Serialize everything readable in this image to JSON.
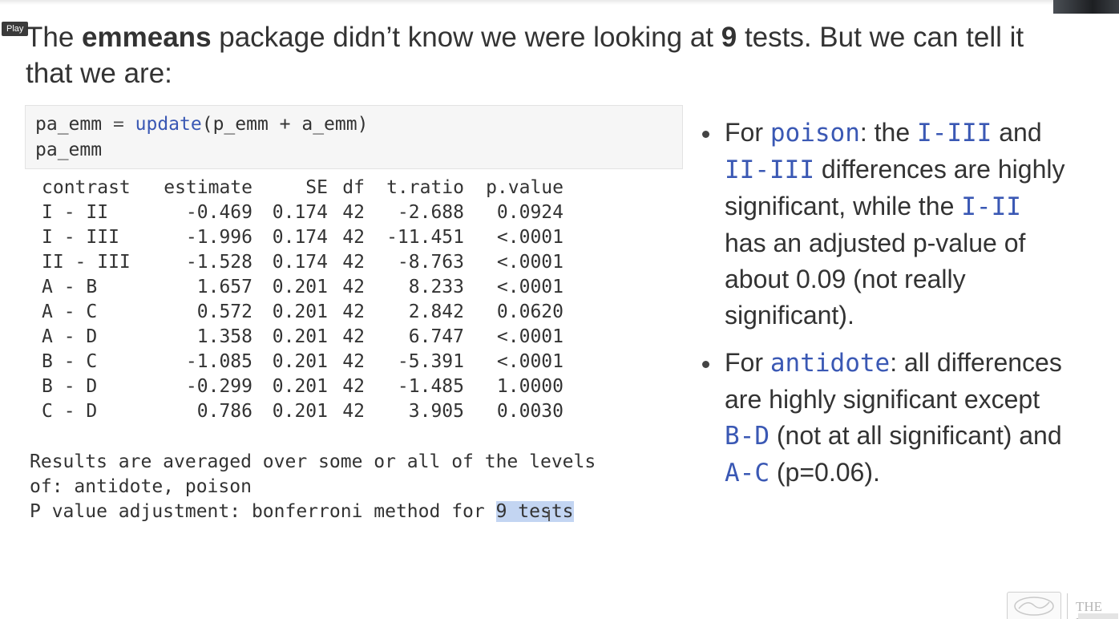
{
  "player": {
    "play_label": "Play"
  },
  "heading": {
    "part1": "The ",
    "bold1": "emmeans",
    "part2": " package didn’t know we were looking at ",
    "bold2": "9",
    "part3": " tests. But we can tell it that we are:"
  },
  "code": {
    "line1": {
      "var": "pa_emm",
      "assign": " = ",
      "fn": "update",
      "args": "(p_emm + a_emm)"
    },
    "line2": "pa_emm"
  },
  "output_table": {
    "headers": [
      "contrast",
      "estimate",
      "SE",
      "df",
      "t.ratio",
      "p.value"
    ],
    "rows": [
      [
        "I - II",
        "-0.469",
        "0.174",
        "42",
        "-2.688",
        "0.0924"
      ],
      [
        "I - III",
        "-1.996",
        "0.174",
        "42",
        "-11.451",
        "<.0001"
      ],
      [
        "II - III",
        "-1.528",
        "0.174",
        "42",
        "-8.763",
        "<.0001"
      ],
      [
        "A - B",
        "1.657",
        "0.201",
        "42",
        "8.233",
        "<.0001"
      ],
      [
        "A - C",
        "0.572",
        "0.201",
        "42",
        "2.842",
        "0.0620"
      ],
      [
        "A - D",
        "1.358",
        "0.201",
        "42",
        "6.747",
        "<.0001"
      ],
      [
        "B - C",
        "-1.085",
        "0.201",
        "42",
        "-5.391",
        "<.0001"
      ],
      [
        "B - D",
        "-0.299",
        "0.201",
        "42",
        "-1.485",
        "1.0000"
      ],
      [
        "C - D",
        "0.786",
        "0.201",
        "42",
        "3.905",
        "0.0030"
      ]
    ]
  },
  "notes": {
    "line1": "Results are averaged over some or all of the levels",
    "line2": "of: antidote, poison",
    "line3_prefix": "P value adjustment: bonferroni method for ",
    "line3_selected": "9 tests"
  },
  "bullets": {
    "b1": {
      "t1": "For ",
      "c1": "poison",
      "t2": ": the ",
      "c2": "I-III",
      "t3": " and ",
      "c3": "II-III",
      "t4": " differences are highly significant, while the ",
      "c4": "I-II",
      "t5": " has an adjusted p-value of about 0.09 (not really significant)."
    },
    "b2": {
      "t1": "For ",
      "c1": "antidote",
      "t2": ": all differences are highly significant except ",
      "c2": "B-D",
      "t3": " (not at all significant) and ",
      "c3": "A-C",
      "t4": " (p=0.06)."
    }
  },
  "footer": {
    "logo_text": "THE UN"
  }
}
